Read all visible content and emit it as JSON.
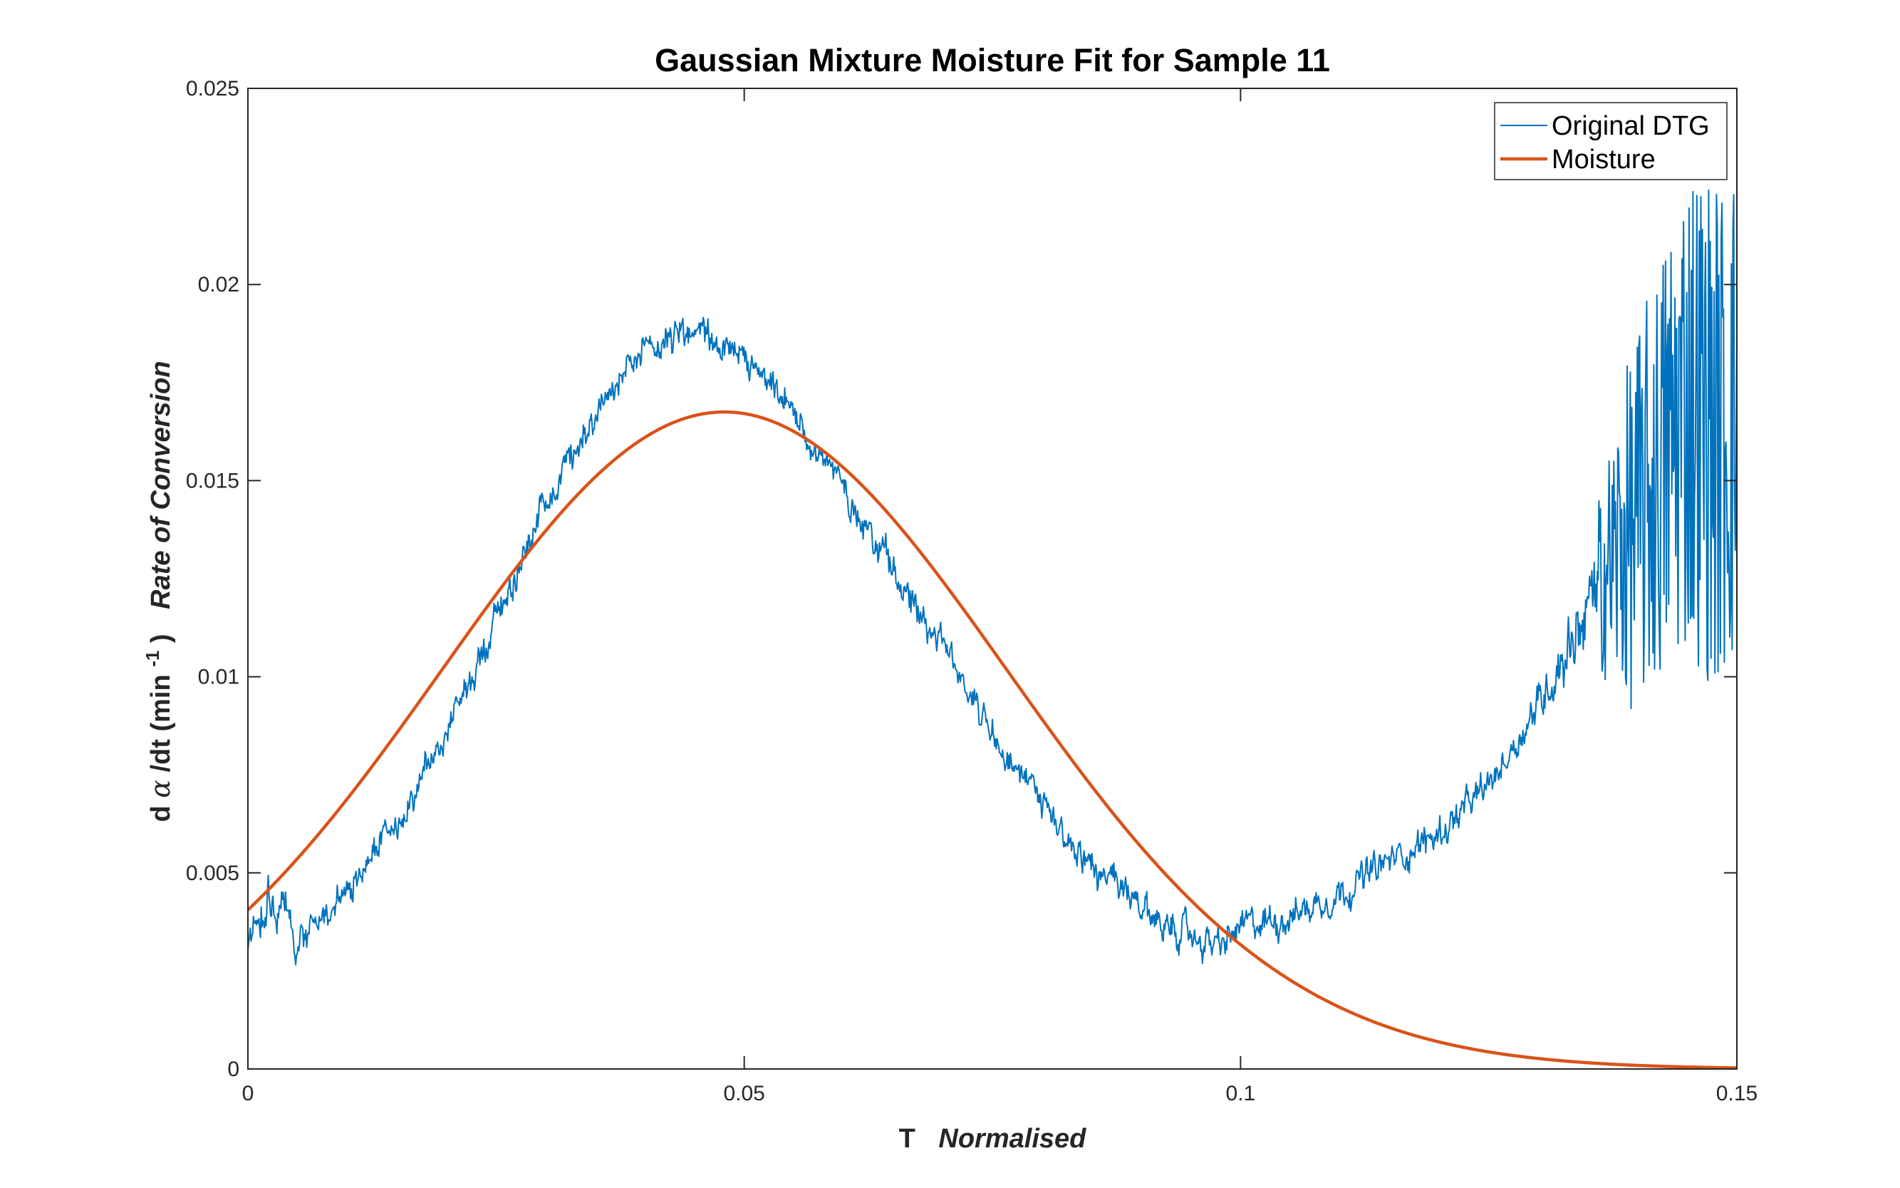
{
  "chart_data": {
    "type": "line",
    "title": "Gaussian Mixture Moisture Fit for Sample 11",
    "xlabel": {
      "main": "T",
      "emphasis": "Normalised"
    },
    "ylabel": {
      "prefix": "d",
      "greek": "α",
      "middle": "/dt (min",
      "superscript": "-1",
      "suffix": ")",
      "emphasis": "Rate of Conversion"
    },
    "xlim": [
      0,
      0.15
    ],
    "ylim": [
      0,
      0.025
    ],
    "xticks": [
      0,
      0.05,
      0.1,
      0.15
    ],
    "xtick_labels": [
      "0",
      "0.05",
      "0.1",
      "0.15"
    ],
    "yticks": [
      0,
      0.005,
      0.01,
      0.015,
      0.02,
      0.025
    ],
    "ytick_labels": [
      "0",
      "0.005",
      "0.01",
      "0.015",
      "0.02",
      "0.025"
    ],
    "grid": false,
    "box": true,
    "legend": {
      "position": "top-right",
      "entries": [
        "Original DTG",
        "Moisture"
      ]
    },
    "series": [
      {
        "name": "Original DTG",
        "color": "#0072BD",
        "line_weight": "thin",
        "style": "noisy",
        "x": [
          0,
          0.002,
          0.005,
          0.008,
          0.01,
          0.015,
          0.02,
          0.025,
          0.03,
          0.035,
          0.04,
          0.043,
          0.046,
          0.05,
          0.055,
          0.06,
          0.065,
          0.07,
          0.075,
          0.08,
          0.085,
          0.09,
          0.095,
          0.098,
          0.1,
          0.105,
          0.11,
          0.115,
          0.12,
          0.125,
          0.13,
          0.135,
          0.138,
          0.14,
          0.142,
          0.145,
          0.148,
          0.15
        ],
        "y": [
          0.003,
          0.0045,
          0.0033,
          0.004,
          0.0044,
          0.0063,
          0.0085,
          0.0115,
          0.0145,
          0.0168,
          0.0182,
          0.0188,
          0.0187,
          0.018,
          0.0167,
          0.0148,
          0.0128,
          0.0108,
          0.0087,
          0.0067,
          0.0052,
          0.004,
          0.0034,
          0.0031,
          0.0036,
          0.0039,
          0.0045,
          0.0053,
          0.006,
          0.0072,
          0.0093,
          0.0118,
          0.0128,
          0.0135,
          0.0145,
          0.0165,
          0.0155,
          0.016
        ],
        "noise_amplitude": [
          0.0007,
          0.0007,
          0.0006,
          0.0005,
          0.0005,
          0.0005,
          0.0005,
          0.0005,
          0.0005,
          0.0005,
          0.0005,
          0.0005,
          0.0005,
          0.0005,
          0.0005,
          0.0005,
          0.0005,
          0.0005,
          0.0005,
          0.0005,
          0.0005,
          0.0005,
          0.0005,
          0.0005,
          0.0005,
          0.0005,
          0.0005,
          0.0005,
          0.0005,
          0.0005,
          0.0006,
          0.0012,
          0.0035,
          0.0045,
          0.005,
          0.006,
          0.006,
          0.006
        ]
      },
      {
        "name": "Moisture",
        "color": "#D95319",
        "line_weight": "thick",
        "style": "smooth",
        "model": "gaussian",
        "amplitude": 0.01675,
        "center": 0.048,
        "sigma": 0.0285
      }
    ]
  }
}
